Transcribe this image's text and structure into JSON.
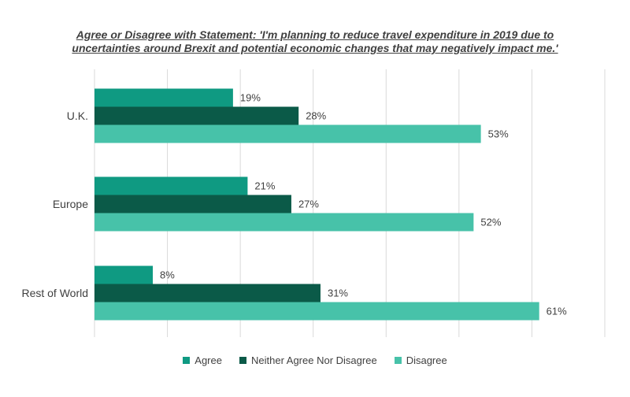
{
  "chart_data": {
    "type": "bar",
    "orientation": "horizontal",
    "title_lines": [
      "Agree or Disagree with Statement: 'I'm planning to reduce travel expenditure in 2019 due to",
      "uncertainties around Brexit and potential economic changes that may negatively impact me.'"
    ],
    "categories": [
      "U.K.",
      "Europe",
      "Rest of World"
    ],
    "series": [
      {
        "name": "Agree",
        "color": "#0f9a82",
        "values": [
          19,
          21,
          8
        ],
        "labels": [
          "19%",
          "21%",
          "8%"
        ]
      },
      {
        "name": "Neither Agree Nor Disagree",
        "color": "#0b5a48",
        "values": [
          28,
          27,
          31
        ],
        "labels": [
          "28%",
          "27%",
          "31%"
        ]
      },
      {
        "name": "Disagree",
        "color": "#47c2a9",
        "values": [
          53,
          52,
          61
        ],
        "labels": [
          "53%",
          "52%",
          "61%"
        ]
      }
    ],
    "xlim": [
      0,
      70
    ],
    "grid": true,
    "legend_position": "bottom"
  }
}
